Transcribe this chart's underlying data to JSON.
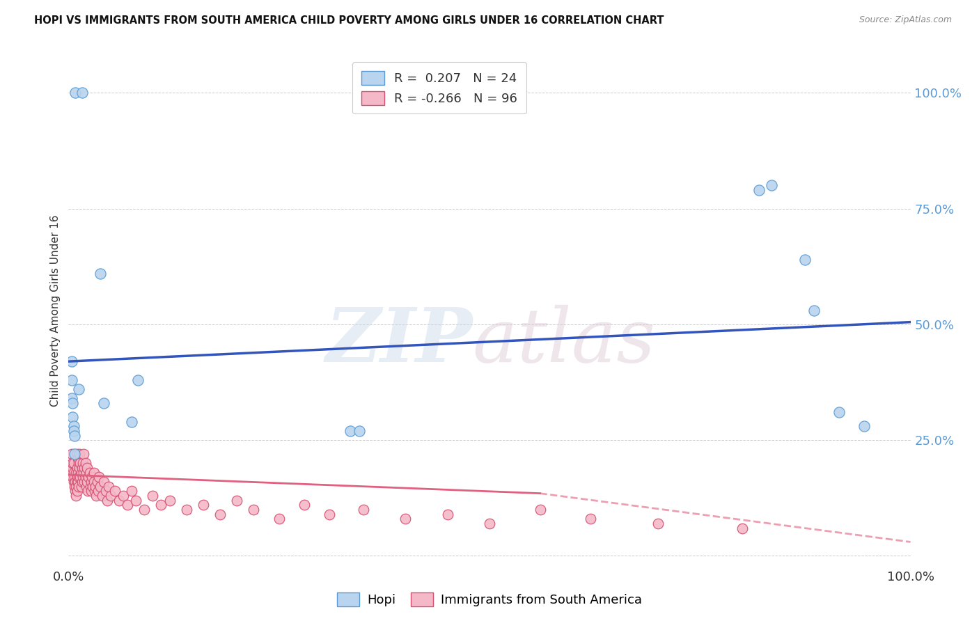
{
  "title": "HOPI VS IMMIGRANTS FROM SOUTH AMERICA CHILD POVERTY AMONG GIRLS UNDER 16 CORRELATION CHART",
  "source": "Source: ZipAtlas.com",
  "ylabel": "Child Poverty Among Girls Under 16",
  "xlim": [
    0,
    1
  ],
  "ylim": [
    -0.02,
    1.08
  ],
  "ytick_positions": [
    0.0,
    0.25,
    0.5,
    0.75,
    1.0
  ],
  "ytick_labels": [
    "",
    "25.0%",
    "50.0%",
    "75.0%",
    "100.0%"
  ],
  "right_ytick_labels": [
    "",
    "25.0%",
    "50.0%",
    "75.0%",
    "100.0%"
  ],
  "xtick_positions": [
    0.0,
    1.0
  ],
  "xtick_labels": [
    "0.0%",
    "100.0%"
  ],
  "hopi_color": "#b8d4ee",
  "hopi_edge_color": "#5b9bd5",
  "sa_color": "#f4b8c8",
  "sa_edge_color": "#d45070",
  "hopi_line_color": "#3355bb",
  "sa_line_color": "#e06080",
  "hopi_R": 0.207,
  "hopi_N": 24,
  "sa_R": -0.266,
  "sa_N": 96,
  "hopi_line_x0": 0.0,
  "hopi_line_y0": 0.42,
  "hopi_line_x1": 1.0,
  "hopi_line_y1": 0.505,
  "sa_line_x0": 0.0,
  "sa_line_y0": 0.175,
  "sa_line_solid_x1": 0.56,
  "sa_line_solid_y1": 0.135,
  "sa_line_x1": 1.0,
  "sa_line_y1": 0.03,
  "hopi_x": [
    0.008,
    0.016,
    0.004,
    0.004,
    0.004,
    0.005,
    0.005,
    0.006,
    0.006,
    0.007,
    0.007,
    0.012,
    0.038,
    0.042,
    0.075,
    0.082,
    0.335,
    0.345,
    0.82,
    0.835,
    0.875,
    0.885,
    0.915,
    0.945
  ],
  "hopi_y": [
    1.0,
    1.0,
    0.42,
    0.38,
    0.34,
    0.33,
    0.3,
    0.28,
    0.27,
    0.26,
    0.22,
    0.36,
    0.61,
    0.33,
    0.29,
    0.38,
    0.27,
    0.27,
    0.79,
    0.8,
    0.64,
    0.53,
    0.31,
    0.28
  ],
  "sa_x": [
    0.003,
    0.004,
    0.004,
    0.005,
    0.005,
    0.005,
    0.006,
    0.006,
    0.006,
    0.007,
    0.007,
    0.008,
    0.008,
    0.009,
    0.009,
    0.009,
    0.01,
    0.01,
    0.01,
    0.01,
    0.01,
    0.011,
    0.011,
    0.011,
    0.012,
    0.012,
    0.012,
    0.013,
    0.013,
    0.014,
    0.014,
    0.015,
    0.015,
    0.016,
    0.016,
    0.017,
    0.017,
    0.018,
    0.018,
    0.019,
    0.019,
    0.02,
    0.02,
    0.021,
    0.021,
    0.022,
    0.022,
    0.023,
    0.024,
    0.025,
    0.026,
    0.027,
    0.027,
    0.028,
    0.029,
    0.03,
    0.03,
    0.031,
    0.032,
    0.033,
    0.034,
    0.035,
    0.036,
    0.038,
    0.04,
    0.042,
    0.044,
    0.046,
    0.048,
    0.05,
    0.055,
    0.06,
    0.065,
    0.07,
    0.075,
    0.08,
    0.09,
    0.1,
    0.11,
    0.12,
    0.14,
    0.16,
    0.18,
    0.2,
    0.22,
    0.25,
    0.28,
    0.31,
    0.35,
    0.4,
    0.45,
    0.5,
    0.56,
    0.62,
    0.7,
    0.8
  ],
  "sa_y": [
    0.19,
    0.22,
    0.18,
    0.17,
    0.19,
    0.2,
    0.16,
    0.18,
    0.2,
    0.15,
    0.17,
    0.14,
    0.16,
    0.13,
    0.15,
    0.18,
    0.22,
    0.19,
    0.17,
    0.16,
    0.14,
    0.21,
    0.18,
    0.16,
    0.2,
    0.17,
    0.15,
    0.22,
    0.19,
    0.2,
    0.17,
    0.15,
    0.18,
    0.19,
    0.16,
    0.2,
    0.17,
    0.22,
    0.18,
    0.16,
    0.19,
    0.2,
    0.17,
    0.15,
    0.18,
    0.19,
    0.16,
    0.14,
    0.17,
    0.18,
    0.15,
    0.16,
    0.14,
    0.17,
    0.15,
    0.18,
    0.16,
    0.14,
    0.15,
    0.13,
    0.16,
    0.14,
    0.17,
    0.15,
    0.13,
    0.16,
    0.14,
    0.12,
    0.15,
    0.13,
    0.14,
    0.12,
    0.13,
    0.11,
    0.14,
    0.12,
    0.1,
    0.13,
    0.11,
    0.12,
    0.1,
    0.11,
    0.09,
    0.12,
    0.1,
    0.08,
    0.11,
    0.09,
    0.1,
    0.08,
    0.09,
    0.07,
    0.1,
    0.08,
    0.07,
    0.06
  ]
}
